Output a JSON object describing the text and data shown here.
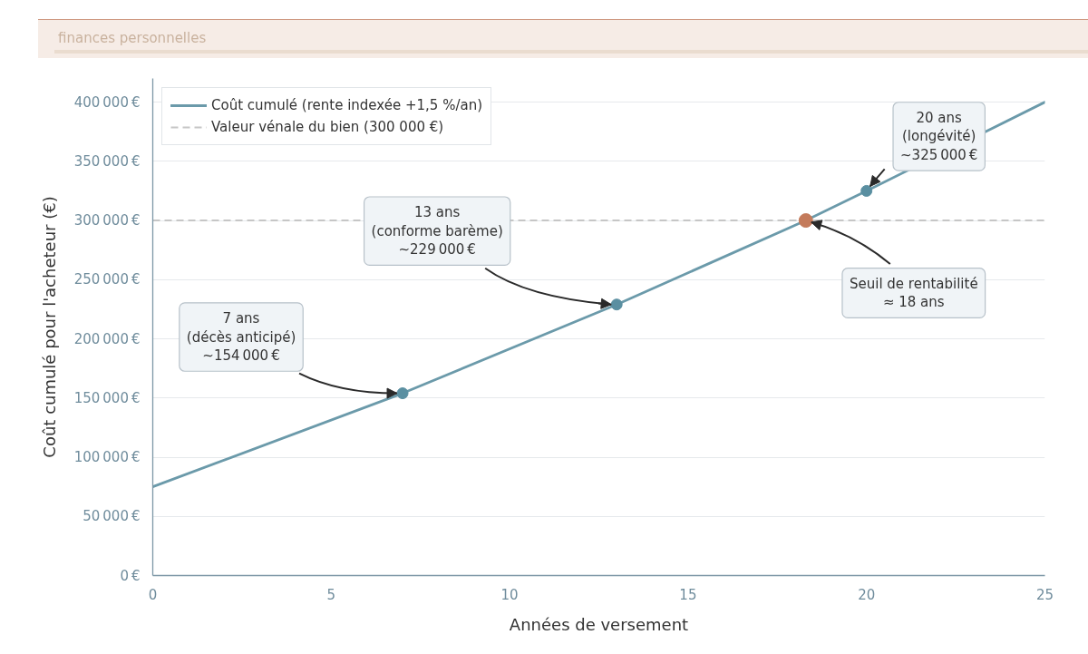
{
  "chart_data": {
    "type": "line",
    "xlabel": "Années de versement",
    "ylabel": "Coût cumulé pour l'acheteur (€)",
    "x": [
      0,
      7,
      13,
      18.3,
      20,
      25
    ],
    "series": [
      {
        "name": "Coût cumulé (rente indexée +1,5 %/an)",
        "color": "#6b9aaa",
        "values": [
          75000,
          154000,
          229000,
          300000,
          325000,
          400000
        ]
      },
      {
        "type": "scatter",
        "marker": "circle",
        "x": [
          7,
          13,
          20
        ],
        "color": "#5a8fa1",
        "values": [
          154000,
          229000,
          325000
        ]
      },
      {
        "type": "scatter",
        "marker": "circle",
        "x": [
          18.3
        ],
        "color": "#c47b5b",
        "values": [
          300000
        ]
      }
    ],
    "ref_lines": [
      {
        "axis": "y",
        "value": 300000,
        "label": "Valeur vénale du bien (300 000 €)",
        "color": "#c6c6c6",
        "line_style": "dashed"
      }
    ],
    "annotations": [
      "finances personnelles",
      {
        "text": "7 ans\n(décès anticipé)\n~154 000 €",
        "x": 7,
        "y": 154000
      },
      {
        "text": "13 ans\n(conforme barème)\n~229 000 €",
        "x": 13,
        "y": 229000
      },
      {
        "text": "20 ans\n(longévité)\n~325 000 €",
        "x": 20,
        "y": 325000
      },
      {
        "text": "Seuil de rentabilité\n≈ 18 ans",
        "x": 18.3,
        "y": 300000
      }
    ],
    "xlim": [
      0,
      25
    ],
    "xticks": [
      0,
      5,
      10,
      15,
      20,
      25
    ],
    "ylim": [
      0,
      420000
    ],
    "yticks": [
      {
        "value": 0,
        "label": "0 €"
      },
      {
        "value": 50000,
        "label": "50 000 €"
      },
      {
        "value": 100000,
        "label": "100 000 €"
      },
      {
        "value": 150000,
        "label": "150 000 €"
      },
      {
        "value": 200000,
        "label": "200 000 €"
      },
      {
        "value": 250000,
        "label": "250 000 €"
      },
      {
        "value": 300000,
        "label": "300 000 €"
      },
      {
        "value": 350000,
        "label": "350 000 €"
      },
      {
        "value": 400000,
        "label": "400 000 €"
      }
    ],
    "grid": "y",
    "legend": "top left"
  }
}
